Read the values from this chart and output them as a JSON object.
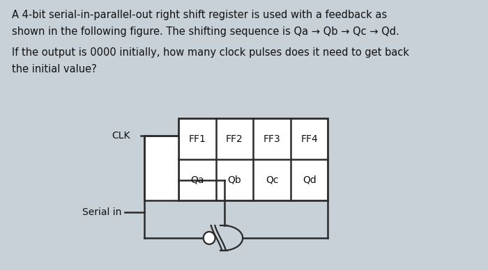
{
  "bg_color": "#c8d1d8",
  "text_color": "#111111",
  "line_color": "#2a2a2a",
  "line1": "A 4-bit serial-in-parallel-out right shift register is used with a feedback as",
  "line2": "shown in the following figure. The shifting sequence is Qa → Qb → Qc → Qd.",
  "line3": "If the output is 0000 initially, how many clock pulses does it need to get back",
  "line4": "the initial value?",
  "ff_labels": [
    "FF1",
    "FF2",
    "FF3",
    "FF4"
  ],
  "q_labels": [
    "Qa",
    "Qb",
    "Qc",
    "Qd"
  ],
  "clk_label": "CLK",
  "serial_in_label": "Serial in",
  "title_fontsize": 10.5,
  "diagram_fontsize": 10.0
}
